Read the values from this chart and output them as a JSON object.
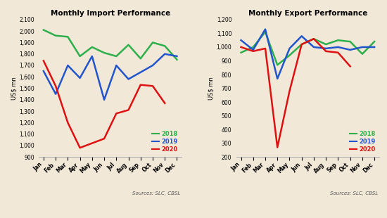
{
  "months": [
    "Jan",
    "Feb",
    "Mar",
    "Apr",
    "May",
    "Jun",
    "Jul",
    "Aug",
    "Sep",
    "Oct",
    "Nov",
    "Dec"
  ],
  "import_2018": [
    2010,
    1960,
    1950,
    1780,
    1860,
    1810,
    1780,
    1880,
    1760,
    1900,
    1870,
    1750
  ],
  "import_2019": [
    1650,
    1450,
    1700,
    1590,
    1780,
    1400,
    1700,
    1580,
    1640,
    1700,
    1800,
    1780
  ],
  "import_2020": [
    1740,
    1520,
    1200,
    980,
    1020,
    1060,
    1280,
    1310,
    1530,
    1520,
    1370,
    null
  ],
  "export_2018": [
    960,
    1000,
    1110,
    870,
    940,
    1020,
    1060,
    1020,
    1050,
    1040,
    950,
    1040
  ],
  "export_2019": [
    1050,
    980,
    1130,
    770,
    990,
    1080,
    1000,
    990,
    1000,
    980,
    1000,
    1000
  ],
  "export_2020": [
    1000,
    970,
    990,
    270,
    680,
    1020,
    1060,
    970,
    960,
    860,
    null,
    null
  ],
  "import_title": "Monthly Import Performance",
  "export_title": "Monthly Export Performance",
  "ylabel": "US$ mn",
  "source_text": "Sources: SLC, CBSL",
  "import_ylim": [
    900,
    2100
  ],
  "import_yticks": [
    900,
    1000,
    1100,
    1200,
    1300,
    1400,
    1500,
    1600,
    1700,
    1800,
    1900,
    2000,
    2100
  ],
  "export_ylim": [
    200,
    1200
  ],
  "export_yticks": [
    200,
    300,
    400,
    500,
    600,
    700,
    800,
    900,
    1000,
    1100,
    1200
  ],
  "color_2018": "#2db04b",
  "color_2019": "#2255cc",
  "color_2020": "#dd1111",
  "bg_color": "#f2e8d8",
  "linewidth": 1.8
}
